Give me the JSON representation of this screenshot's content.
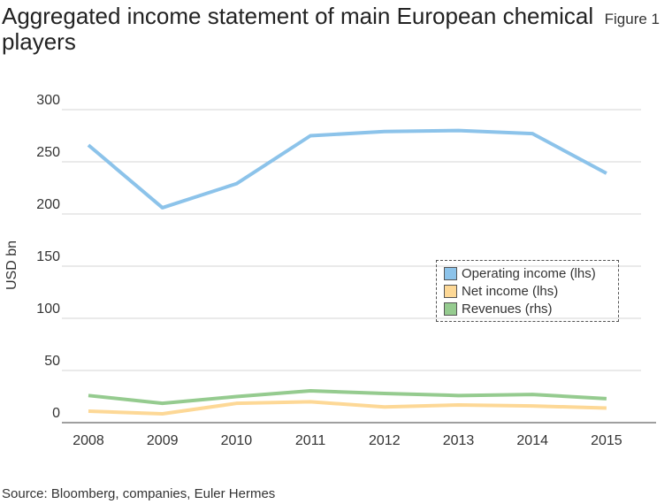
{
  "chart_data": {
    "type": "line",
    "title": "Aggregated income statement of main European chemical players",
    "figure_label": "Figure 1",
    "source": "Source: Bloomberg, companies, Euler Hermes",
    "ylabel": "USD bn",
    "xlabel": "",
    "ylim": [
      0,
      300
    ],
    "yticks": [
      "0",
      "50",
      "100",
      "150",
      "200",
      "250",
      "300"
    ],
    "x": [
      "2008",
      "2009",
      "2010",
      "2011",
      "2012",
      "2013",
      "2014",
      "2015"
    ],
    "grid": true,
    "legend_placement": "center-right",
    "series": [
      {
        "name": "Operating income (lhs)",
        "color": "#8cc3ea",
        "values": [
          266,
          206,
          229,
          275,
          279,
          280,
          277,
          239
        ]
      },
      {
        "name": "Net income (lhs)",
        "color": "#fdd896",
        "values": [
          11,
          8.5,
          18.5,
          20,
          15,
          17,
          16,
          14
        ]
      },
      {
        "name": "Revenues (rhs)",
        "color": "#95cb8f",
        "values": [
          26,
          18.5,
          25,
          30.5,
          28,
          26,
          27,
          23
        ]
      }
    ]
  }
}
